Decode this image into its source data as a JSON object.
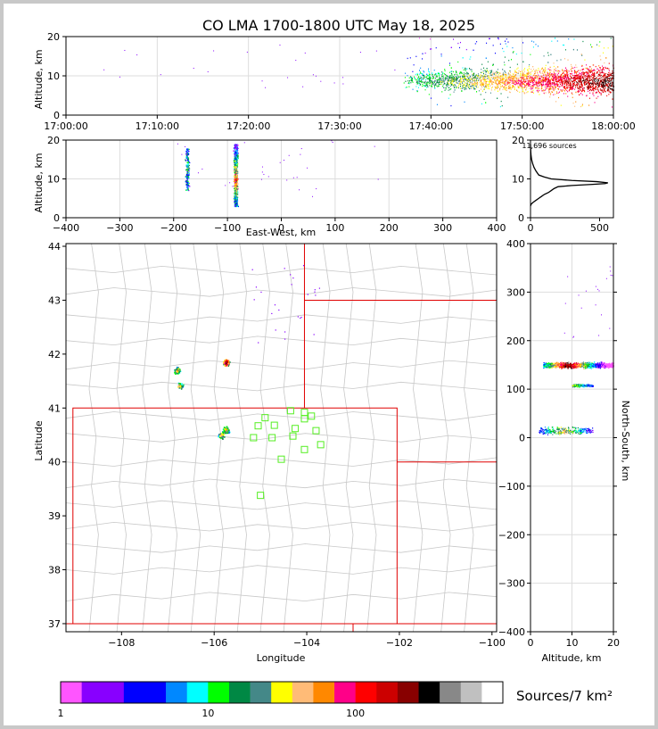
{
  "title": "CO LMA 1700-1800 UTC May 18, 2025",
  "colors": {
    "scale": [
      "#ff55ff",
      "#8800ff",
      "#8800ff",
      "#0000ff",
      "#0000ff",
      "#0088ff",
      "#00ffff",
      "#00ff00",
      "#008844",
      "#448888",
      "#ffff00",
      "#ffbb77",
      "#ff8800",
      "#ff0088",
      "#ff0000",
      "#cc0000",
      "#880000",
      "#000000",
      "#888888",
      "#c0c0c0",
      "#ffffff"
    ],
    "state_line": "#e00000",
    "station": "#55ee22",
    "county_line": "#c8c8c8"
  },
  "chart_data": [
    {
      "id": "time_height",
      "type": "scatter",
      "xlabel": "",
      "ylabel": "Altitude, km",
      "xlim": [
        "17:00:00",
        "18:00:00"
      ],
      "ylim": [
        0,
        20
      ],
      "xticks": [
        "17:00:00",
        "17:10:00",
        "17:20:00",
        "17:30:00",
        "17:40:00",
        "17:50:00",
        "18:00:00"
      ],
      "yticks": [
        0,
        10,
        20
      ],
      "grid": true,
      "activity_start_minute": 37,
      "core_altitude_km": [
        4,
        15
      ]
    },
    {
      "id": "ew_height",
      "type": "scatter",
      "xlabel": "East-West, km",
      "ylabel": "Altitude, km",
      "xlim": [
        -400,
        400
      ],
      "ylim": [
        0,
        20
      ],
      "xticks": [
        -400,
        -300,
        -200,
        -100,
        0,
        100,
        200,
        300,
        400
      ],
      "yticks": [
        0,
        10,
        20
      ],
      "grid": true,
      "clusters": [
        {
          "x": -175,
          "alt": [
            7,
            18
          ]
        },
        {
          "x": -85,
          "alt": [
            3,
            19
          ]
        }
      ]
    },
    {
      "id": "altitude_histogram",
      "type": "line",
      "annotation": "11,696 sources",
      "xlim": [
        0,
        600
      ],
      "ylim": [
        0,
        20
      ],
      "xticks": [
        0,
        500
      ],
      "yticks": [
        0,
        10,
        20
      ],
      "x": [
        0,
        5,
        20,
        40,
        60,
        80,
        100,
        130,
        150,
        170,
        200,
        300,
        450,
        540,
        560,
        480,
        300,
        150,
        100,
        60,
        40,
        25,
        15,
        8,
        4,
        2,
        1,
        0
      ],
      "y": [
        3,
        3.5,
        4,
        4.5,
        5,
        5.5,
        6,
        6.5,
        7,
        7.5,
        8,
        8.3,
        8.6,
        8.8,
        9,
        9.3,
        9.6,
        10,
        10.5,
        11,
        12,
        13,
        14,
        15,
        16,
        17,
        18,
        19
      ]
    },
    {
      "id": "plan_view",
      "type": "scatter",
      "xlabel": "Longitude",
      "ylabel": "Latitude",
      "xlim": [
        -109.2,
        -99.9
      ],
      "ylim": [
        36.85,
        44.05
      ],
      "xticks": [
        "−108",
        "−106",
        "−104",
        "−102",
        "−100"
      ],
      "xtick_values": [
        -108,
        -106,
        -104,
        -102,
        -100
      ],
      "yticks": [
        37,
        38,
        39,
        40,
        41,
        42,
        43,
        44
      ],
      "grid": false,
      "stations": [
        {
          "lon": -104.9,
          "lat": 40.82
        },
        {
          "lon": -104.35,
          "lat": 40.95
        },
        {
          "lon": -104.05,
          "lat": 40.92
        },
        {
          "lon": -103.9,
          "lat": 40.85
        },
        {
          "lon": -104.05,
          "lat": 40.8
        },
        {
          "lon": -105.05,
          "lat": 40.67
        },
        {
          "lon": -104.7,
          "lat": 40.68
        },
        {
          "lon": -104.25,
          "lat": 40.62
        },
        {
          "lon": -103.8,
          "lat": 40.58
        },
        {
          "lon": -105.15,
          "lat": 40.45
        },
        {
          "lon": -104.75,
          "lat": 40.45
        },
        {
          "lon": -104.3,
          "lat": 40.48
        },
        {
          "lon": -103.7,
          "lat": 40.32
        },
        {
          "lon": -104.05,
          "lat": 40.23
        },
        {
          "lon": -104.55,
          "lat": 40.05
        },
        {
          "lon": -105.0,
          "lat": 39.38
        }
      ],
      "storm_clusters": [
        {
          "lon": -105.75,
          "lat": 41.85
        },
        {
          "lon": -106.8,
          "lat": 41.7
        },
        {
          "lon": -106.75,
          "lat": 41.42
        },
        {
          "lon": -105.75,
          "lat": 40.6
        },
        {
          "lon": -105.85,
          "lat": 40.5
        }
      ]
    },
    {
      "id": "ns_height",
      "type": "scatter",
      "xlabel": "Altitude, km",
      "ylabel": "North-South, km",
      "xlim": [
        0,
        20
      ],
      "ylim": [
        -400,
        400
      ],
      "xticks": [
        0,
        10,
        20
      ],
      "yticks": [
        -400,
        -300,
        -200,
        -100,
        0,
        100,
        200,
        300,
        400
      ],
      "grid": true,
      "clusters": [
        {
          "ns": 150,
          "alt": [
            3,
            20
          ]
        },
        {
          "ns": 108,
          "alt": [
            10,
            15
          ]
        },
        {
          "ns": 15,
          "alt": [
            2,
            15
          ]
        }
      ]
    },
    {
      "id": "colorbar",
      "type": "heatmap",
      "label": "Sources/7 km²",
      "tick_labels": [
        "1",
        "10",
        "100"
      ],
      "tick_values": [
        1,
        10,
        100
      ],
      "log_range": [
        1,
        1000
      ]
    }
  ]
}
